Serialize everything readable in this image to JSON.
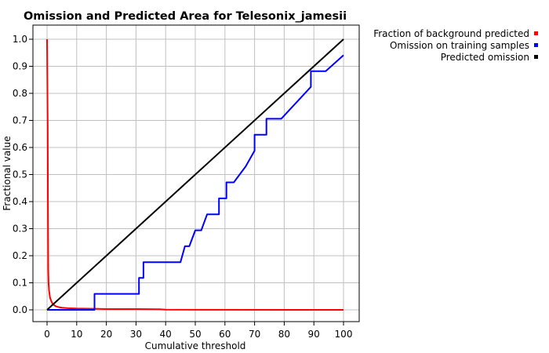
{
  "chart_data": {
    "type": "line",
    "title": "Omission and Predicted Area for Telesonix_jamesii",
    "xlabel": "Cumulative threshold",
    "ylabel": "Fractional value",
    "xlim": [
      0,
      100
    ],
    "ylim": [
      0,
      1
    ],
    "xticks": [
      "0",
      "10",
      "20",
      "30",
      "40",
      "50",
      "60",
      "70",
      "80",
      "90",
      "100"
    ],
    "yticks": [
      "0.0",
      "0.1",
      "0.2",
      "0.3",
      "0.4",
      "0.5",
      "0.6",
      "0.7",
      "0.8",
      "0.9",
      "1.0"
    ],
    "grid": true,
    "legend_position": "top-right, outside plot",
    "series": [
      {
        "name": "Fraction of background predicted",
        "color": "#ff0000",
        "x": [
          0,
          0.2,
          0.3,
          0.4,
          0.5,
          0.7,
          1,
          1.5,
          2,
          3,
          4,
          5,
          7,
          10,
          16,
          20,
          30,
          38,
          40,
          100
        ],
        "y": [
          1.0,
          0.68,
          0.4,
          0.15,
          0.1,
          0.07,
          0.045,
          0.03,
          0.02,
          0.013,
          0.01,
          0.008,
          0.006,
          0.005,
          0.004,
          0.003,
          0.003,
          0.002,
          0.0005,
          0.0
        ]
      },
      {
        "name": "Omission on training samples",
        "color": "#0000ff",
        "x": [
          0,
          16,
          16,
          31,
          31,
          32.5,
          32.5,
          45,
          46.5,
          48,
          50,
          52,
          54,
          56,
          58,
          58,
          60.5,
          60.5,
          63,
          67,
          70,
          70,
          74,
          74,
          79,
          84,
          89,
          89,
          94,
          100
        ],
        "y": [
          0,
          0,
          0.059,
          0.059,
          0.118,
          0.118,
          0.176,
          0.176,
          0.235,
          0.235,
          0.294,
          0.294,
          0.353,
          0.353,
          0.353,
          0.412,
          0.412,
          0.471,
          0.471,
          0.53,
          0.588,
          0.647,
          0.647,
          0.706,
          0.706,
          0.765,
          0.824,
          0.882,
          0.882,
          0.941
        ]
      },
      {
        "name": "Predicted omission",
        "color": "#000000",
        "x": [
          0,
          100
        ],
        "y": [
          0,
          1
        ]
      }
    ]
  }
}
